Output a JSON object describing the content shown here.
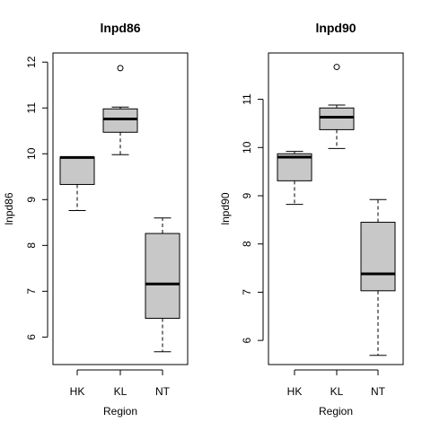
{
  "chart_data": [
    {
      "type": "boxplot",
      "title": "lnpd86",
      "xlabel": "Region",
      "ylabel": "lnpd86",
      "ylim": [
        5.4,
        12.2
      ],
      "yticks": [
        6,
        7,
        8,
        9,
        10,
        11,
        12
      ],
      "categories": [
        "HK",
        "KL",
        "NT"
      ],
      "boxes": [
        {
          "category": "HK",
          "whisker_low": 8.76,
          "q1": 9.33,
          "median": 9.92,
          "q3": 9.93,
          "whisker_high": 9.93,
          "outliers": []
        },
        {
          "category": "KL",
          "whisker_low": 9.98,
          "q1": 10.47,
          "median": 10.76,
          "q3": 10.98,
          "whisker_high": 11.02,
          "outliers": [
            11.87
          ]
        },
        {
          "category": "NT",
          "whisker_low": 5.68,
          "q1": 6.41,
          "median": 7.16,
          "q3": 8.26,
          "whisker_high": 8.6,
          "outliers": []
        }
      ]
    },
    {
      "type": "boxplot",
      "title": "lnpd90",
      "xlabel": "Region",
      "ylabel": "lnpd90",
      "ylim": [
        5.5,
        11.96
      ],
      "yticks": [
        6,
        7,
        8,
        9,
        10,
        11
      ],
      "categories": [
        "HK",
        "KL",
        "NT"
      ],
      "boxes": [
        {
          "category": "HK",
          "whisker_low": 8.82,
          "q1": 9.31,
          "median": 9.8,
          "q3": 9.87,
          "whisker_high": 9.92,
          "outliers": []
        },
        {
          "category": "KL",
          "whisker_low": 9.98,
          "q1": 10.37,
          "median": 10.63,
          "q3": 10.82,
          "whisker_high": 10.88,
          "outliers": [
            11.67
          ]
        },
        {
          "category": "NT",
          "whisker_low": 5.69,
          "q1": 7.03,
          "median": 7.38,
          "q3": 8.45,
          "whisker_high": 8.92,
          "outliers": []
        }
      ]
    }
  ]
}
